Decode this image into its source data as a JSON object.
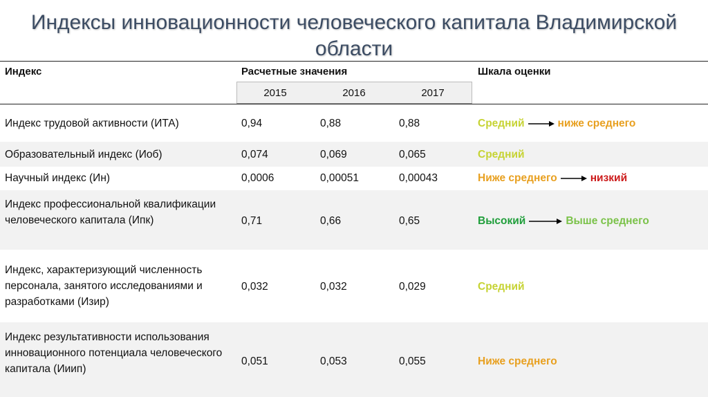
{
  "title_line1": "Индексы инновационности человеческого капитала Владимирской",
  "title_line2": "области",
  "header": {
    "index": "Индекс",
    "values": "Расчетные значения",
    "scale": "Шкала оценки",
    "years": [
      "2015",
      "2016",
      "2017"
    ]
  },
  "colors": {
    "title": "#3c4c63",
    "average": "#c6d333",
    "below_average": "#e8a020",
    "low": "#cc1b1b",
    "high": "#1f9e3a",
    "above_average": "#7bc24a"
  },
  "rows": [
    {
      "name": "Индекс трудовой активности (ИТА)",
      "v2015": "0,94",
      "v2016": "0,88",
      "v2017": "0,88",
      "scale_from": "Средний",
      "scale_to": "ниже среднего"
    },
    {
      "name": "Образовательный индекс (Иоб)",
      "v2015": "0,074",
      "v2016": "0,069",
      "v2017": "0,065",
      "scale_from": "Средний"
    },
    {
      "name": "Научный индекс (Ин)",
      "v2015": "0,0006",
      "v2016": "0,00051",
      "v2017": "0,00043",
      "scale_from": "Ниже среднего",
      "scale_to": "низкий"
    },
    {
      "name": "Индекс профессиональной квалификации человеческого капитала (Ипк)",
      "v2015": "0,71",
      "v2016": "0,66",
      "v2017": "0,65",
      "scale_from": "Высокий",
      "scale_to": "Выше среднего"
    },
    {
      "name": "Индекс, характеризующий численность персонала, занятого исследованиями и разработками (Изир)",
      "v2015": "0,032",
      "v2016": "0,032",
      "v2017": "0,029",
      "scale_from": "Средний"
    },
    {
      "name": "Индекс результативности использования инновационного потенциала человеческого капитала (Ииип)",
      "v2015": "0,051",
      "v2016": "0,053",
      "v2017": "0,055",
      "scale_from": "Ниже среднего"
    }
  ]
}
